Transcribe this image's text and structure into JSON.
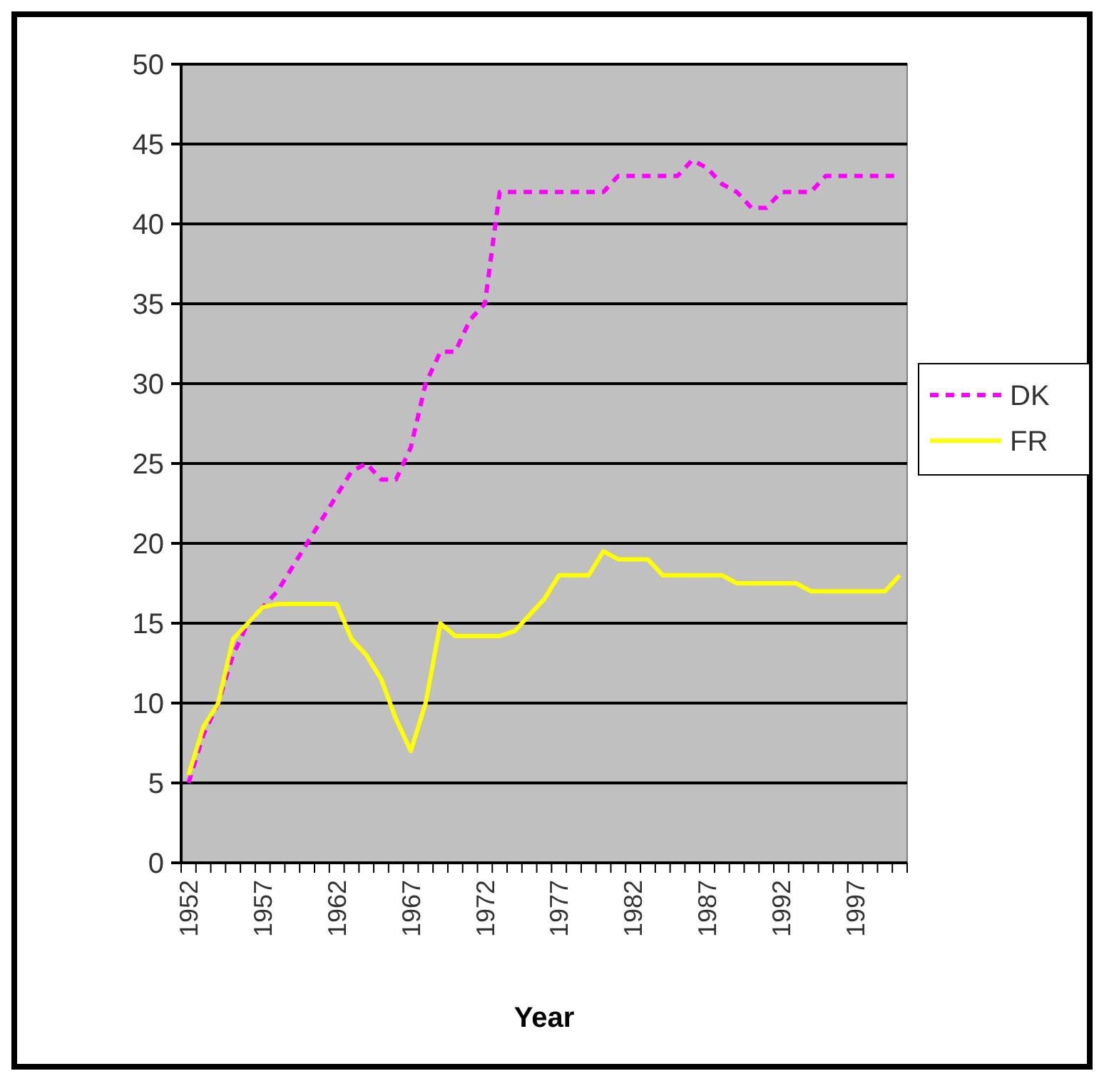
{
  "chart_data": {
    "type": "line",
    "xlabel": "Year",
    "categories": [
      "1952",
      null,
      null,
      null,
      null,
      "1957",
      null,
      null,
      null,
      null,
      "1962",
      null,
      null,
      null,
      null,
      "1967",
      null,
      null,
      null,
      null,
      "1972",
      null,
      null,
      null,
      null,
      "1977",
      null,
      null,
      null,
      null,
      "1982",
      null,
      null,
      null,
      null,
      "1987",
      null,
      null,
      null,
      null,
      "1992",
      null,
      null,
      null,
      null,
      "1997",
      null,
      null,
      null
    ],
    "series": [
      {
        "name": "DK",
        "color": "#ff00ff",
        "line_style": "dashed",
        "values": [
          5,
          8,
          10,
          13,
          15,
          16,
          17,
          18.5,
          20,
          21.5,
          23,
          24.5,
          25,
          24,
          24,
          26,
          30,
          32,
          32,
          34,
          35,
          42,
          42,
          42,
          42,
          42,
          42,
          42,
          42,
          43,
          43,
          43,
          43,
          43,
          44,
          43.5,
          42.5,
          42,
          41,
          41,
          42,
          42,
          42,
          43,
          43,
          43,
          43,
          43,
          43
        ]
      },
      {
        "name": "FR",
        "color": "#ffff00",
        "line_style": "solid",
        "values": [
          5.5,
          8.5,
          10,
          14,
          15,
          16,
          16.2,
          16.2,
          16.2,
          16.2,
          16.2,
          14,
          13,
          11.5,
          9,
          7,
          10,
          15,
          14.2,
          14.2,
          14.2,
          14.2,
          14.5,
          15.5,
          16.5,
          18,
          18,
          18,
          19.5,
          19,
          19,
          19,
          18,
          18,
          18,
          18,
          18,
          17.5,
          17.5,
          17.5,
          17.5,
          17.5,
          17,
          17,
          17,
          17,
          17,
          17,
          18
        ]
      }
    ],
    "ylim": [
      0,
      50
    ],
    "yticks": [
      0,
      5,
      10,
      15,
      20,
      25,
      30,
      35,
      40,
      45,
      50
    ],
    "grid": "y",
    "legend": "right"
  }
}
